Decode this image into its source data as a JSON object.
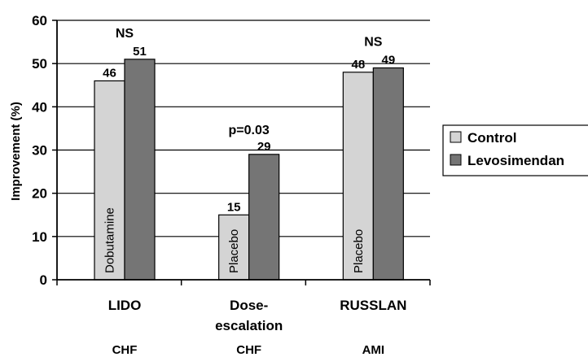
{
  "chart_data": {
    "type": "bar",
    "ylabel": "Improvement (%)",
    "ylim": [
      0,
      60
    ],
    "yticks": [
      "0",
      "10",
      "20",
      "30",
      "40",
      "50",
      "60"
    ],
    "grid": true,
    "legend_position": "right",
    "categories": [
      {
        "label_lines": [
          "LIDO"
        ],
        "sub": "CHF"
      },
      {
        "label_lines": [
          "Dose-",
          "escalation"
        ],
        "sub": "CHF"
      },
      {
        "label_lines": [
          "RUSSLAN"
        ],
        "sub": "AMI"
      }
    ],
    "series": [
      {
        "name": "Control",
        "color": "#d4d4d4",
        "values": [
          46,
          15,
          48
        ],
        "labels": [
          "46",
          "15",
          "48"
        ]
      },
      {
        "name": "Levosimendan",
        "color": "#757575",
        "values": [
          51,
          29,
          49
        ],
        "labels": [
          "51",
          "29",
          "49"
        ]
      }
    ],
    "control_bar_text": [
      "Dobutamine",
      "Placebo",
      "Placebo"
    ],
    "annotations": [
      "NS",
      "p=0.03",
      "NS"
    ]
  }
}
